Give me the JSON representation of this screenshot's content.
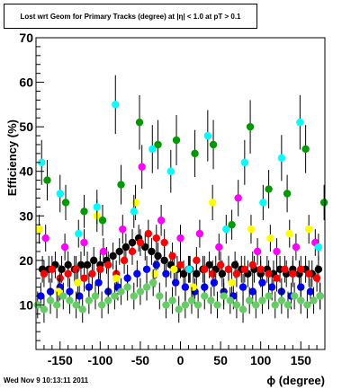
{
  "footer_text": "Wed Nov  9 10:13:11 2011",
  "chart_data": {
    "type": "scatter",
    "title": "Lost wrt Geom for Primary Tracks (degree) at |η| < 1.0 at pT > 0.1",
    "xlabel": "ϕ (degree)",
    "ylabel": "Efficiency (%)",
    "xlim": [
      -180,
      180
    ],
    "ylim": [
      0,
      70
    ],
    "x_ticks": [
      -150,
      -100,
      -50,
      0,
      50,
      100,
      150
    ],
    "y_ticks": [
      10,
      20,
      30,
      40,
      50,
      60,
      70
    ],
    "grid": false,
    "legend": "none",
    "series": [
      {
        "color": "#000000",
        "x": [
          -172,
          -164,
          -156,
          -148,
          -140,
          -132,
          -124,
          -116,
          -108,
          -100,
          -92,
          -84,
          -76,
          -68,
          -60,
          -52,
          -44,
          -36,
          -28,
          -20,
          -12,
          -4,
          4,
          12,
          20,
          28,
          36,
          44,
          52,
          60,
          68,
          76,
          84,
          92,
          100,
          108,
          116,
          124,
          132,
          140,
          148,
          156,
          164,
          172
        ],
        "y": [
          18,
          18,
          19,
          18,
          19,
          18,
          19,
          19,
          20,
          19,
          20,
          21,
          22,
          23,
          24,
          25,
          23,
          22,
          21,
          20,
          19,
          18,
          17,
          18,
          17,
          18,
          19,
          18,
          17,
          18,
          19,
          18,
          17,
          18,
          17,
          18,
          17,
          18,
          17,
          18,
          17,
          18,
          17,
          18
        ]
      },
      {
        "color": "#ff0000",
        "x": [
          -170,
          -160,
          -150,
          -140,
          -130,
          -120,
          -110,
          -100,
          -90,
          -80,
          -70,
          -60,
          -50,
          -40,
          -30,
          -20,
          -10,
          0,
          10,
          20,
          30,
          40,
          50,
          60,
          70,
          80,
          90,
          100,
          110,
          120,
          130,
          140,
          150,
          160,
          170
        ],
        "y": [
          17,
          18,
          16,
          17,
          18,
          16,
          17,
          18,
          19,
          17,
          20,
          22,
          24,
          26,
          25,
          24,
          21,
          19,
          18,
          20,
          18,
          17,
          19,
          18,
          17,
          18,
          19,
          18,
          17,
          16,
          18,
          17,
          18,
          17,
          16
        ]
      },
      {
        "color": "#0000ff",
        "x": [
          -174,
          -162,
          -150,
          -138,
          -126,
          -114,
          -102,
          -90,
          -78,
          -66,
          -54,
          -42,
          -30,
          -18,
          -6,
          6,
          18,
          30,
          42,
          54,
          66,
          78,
          90,
          102,
          114,
          126,
          138,
          150,
          162,
          174
        ],
        "y": [
          12,
          13,
          14,
          13,
          12,
          14,
          15,
          13,
          14,
          16,
          17,
          18,
          19,
          17,
          15,
          14,
          13,
          14,
          15,
          13,
          12,
          14,
          13,
          15,
          14,
          13,
          12,
          14,
          13,
          12
        ]
      },
      {
        "color": "#ffff00",
        "x": [
          -176,
          -152,
          -128,
          -104,
          -80,
          -56,
          -32,
          -8,
          16,
          40,
          64,
          88,
          112,
          136,
          160
        ],
        "y": [
          27,
          13,
          15,
          30,
          16,
          33,
          17,
          18,
          14,
          33,
          15,
          27,
          25,
          26,
          27
        ]
      },
      {
        "color": "#ff00ff",
        "x": [
          -168,
          -144,
          -120,
          -96,
          -72,
          -48,
          -24,
          0,
          24,
          48,
          72,
          96,
          120,
          144,
          168
        ],
        "y": [
          25,
          23,
          24,
          22,
          27,
          41,
          29,
          25,
          26,
          23,
          34,
          22,
          22,
          23,
          24
        ]
      },
      {
        "color": "#00ffff",
        "x": [
          -173,
          -150,
          -127,
          -104,
          -81,
          -58,
          -35,
          -12,
          11,
          34,
          57,
          80,
          103,
          126,
          149,
          172
        ],
        "y": [
          42,
          35,
          26,
          32,
          55,
          31,
          45,
          40,
          18,
          48,
          27,
          42,
          33,
          43,
          51,
          23
        ]
      },
      {
        "color": "#009900",
        "x": [
          -166,
          -143,
          -120,
          -97,
          -74,
          -51,
          -28,
          -5,
          18,
          41,
          64,
          87,
          110,
          133,
          156,
          179
        ],
        "y": [
          38,
          33,
          31,
          29,
          37,
          51,
          46,
          47,
          44,
          46,
          28,
          50,
          36,
          35,
          45,
          33
        ]
      },
      {
        "color": "#66cc66",
        "x": [
          -178,
          -170,
          -162,
          -154,
          -146,
          -138,
          -130,
          -122,
          -114,
          -106,
          -98,
          -90,
          -82,
          -74,
          -66,
          -58,
          -50,
          -42,
          -34,
          -26,
          -18,
          -10,
          -2,
          6,
          14,
          22,
          30,
          38,
          46,
          54,
          62,
          70,
          78,
          86,
          94,
          102,
          110,
          118,
          126,
          134,
          142,
          150,
          158,
          166,
          174
        ],
        "y": [
          10,
          9,
          11,
          10,
          12,
          11,
          10,
          9,
          11,
          12,
          10,
          11,
          12,
          13,
          14,
          12,
          13,
          14,
          15,
          12,
          10,
          11,
          9,
          10,
          11,
          10,
          12,
          11,
          10,
          12,
          11,
          10,
          9,
          11,
          10,
          11,
          12,
          10,
          11,
          10,
          12,
          11,
          10,
          11,
          12
        ]
      }
    ]
  }
}
